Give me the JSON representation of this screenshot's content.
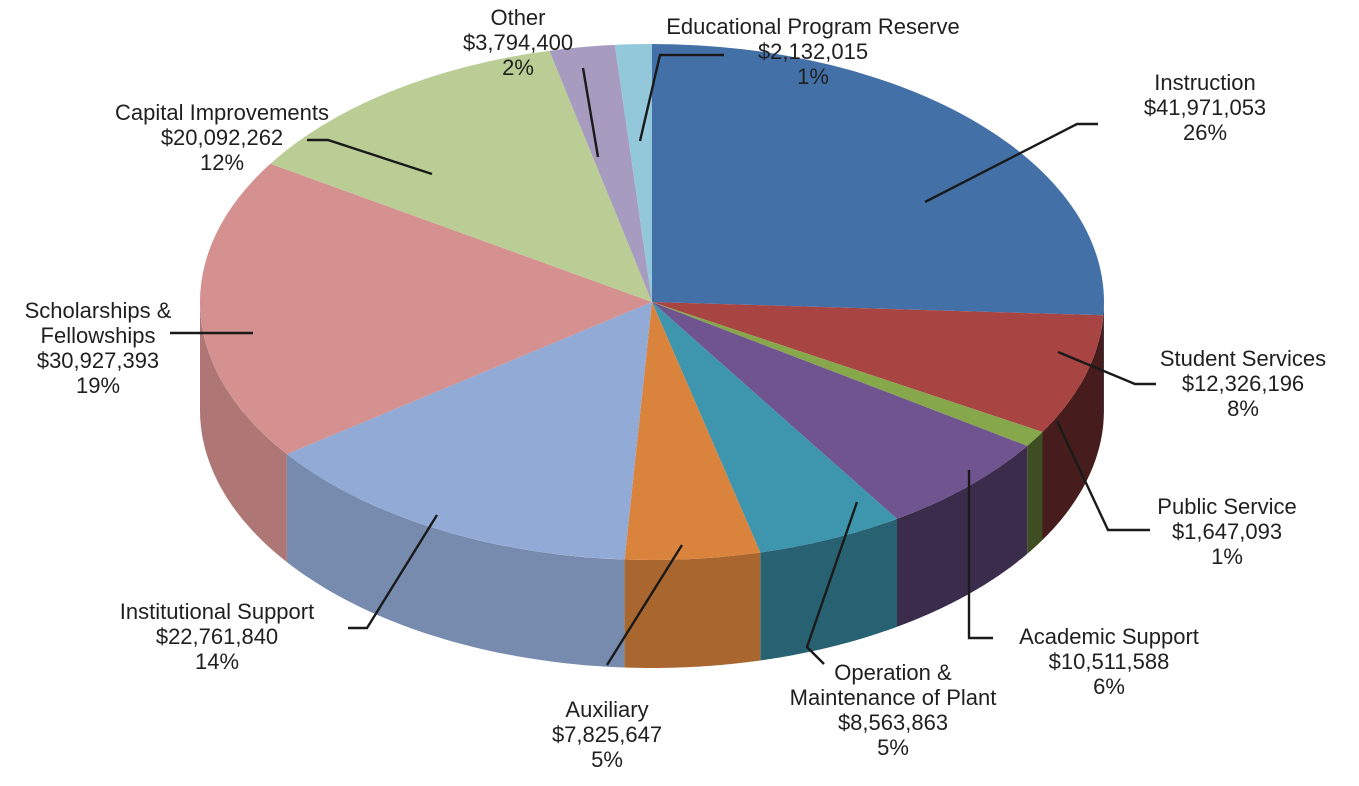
{
  "chart_data": {
    "type": "pie",
    "style": "3d",
    "title": "",
    "start_angle_deg": 90,
    "direction": "clockwise",
    "slices": [
      {
        "label": "Instruction",
        "amount": "$41,971,053",
        "value": 41971053,
        "percent": "26%",
        "color": "#4470a8"
      },
      {
        "label": "Student Services",
        "amount": "$12,326,196",
        "value": 12326196,
        "percent": "8%",
        "color": "#a84442"
      },
      {
        "label": "Public Service",
        "amount": "$1,647,093",
        "value": 1647093,
        "percent": "1%",
        "color": "#86a84a"
      },
      {
        "label": "Academic Support",
        "amount": "$10,511,588",
        "value": 10511588,
        "percent": "6%",
        "color": "#705490"
      },
      {
        "label": "Operation & Maintenance of Plant",
        "amount": "$8,563,863",
        "value": 8563863,
        "percent": "5%",
        "color": "#3d96ae"
      },
      {
        "label": "Auxiliary",
        "amount": "$7,825,647",
        "value": 7825647,
        "percent": "5%",
        "color": "#d9833c"
      },
      {
        "label": "Institutional Support",
        "amount": "$22,761,840",
        "value": 22761840,
        "percent": "14%",
        "color": "#91aad6"
      },
      {
        "label": "Scholarships & Fellowships",
        "amount": "$30,927,393",
        "value": 30927393,
        "percent": "19%",
        "color": "#d49190"
      },
      {
        "label": "Capital Improvements",
        "amount": "$20,092,262",
        "value": 20092262,
        "percent": "12%",
        "color": "#b9cd95"
      },
      {
        "label": "Other",
        "amount": "$3,794,400",
        "value": 3794400,
        "percent": "2%",
        "color": "#a89bc0"
      },
      {
        "label": "Educational Program Reserve",
        "amount": "$2,132,015",
        "value": 2132015,
        "percent": "1%",
        "color": "#93c7da"
      }
    ]
  },
  "label_lines": [
    [
      "Instruction"
    ],
    [
      "Student Services"
    ],
    [
      "Public Service"
    ],
    [
      "Academic Support"
    ],
    [
      "Operation &",
      "Maintenance of Plant"
    ],
    [
      "Auxiliary"
    ],
    [
      "Institutional Support"
    ],
    [
      "Scholarships &",
      "Fellowships"
    ],
    [
      "Capital Improvements"
    ],
    [
      "Other"
    ],
    [
      "Educational Program Reserve"
    ]
  ]
}
